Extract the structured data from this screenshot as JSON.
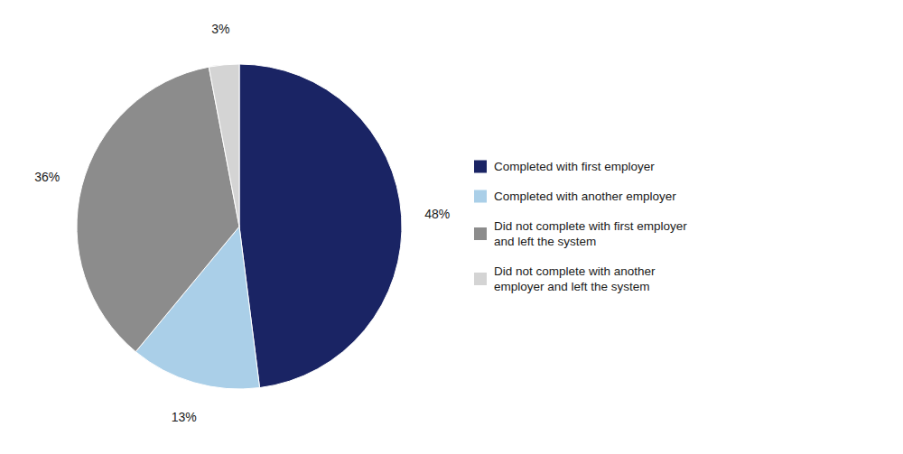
{
  "chart_data": {
    "type": "pie",
    "categories": [
      "Completed with first employer",
      "Completed with another employer",
      "Did not complete with first employer\nand left the system",
      "Did not complete with another\nemployer and left the system"
    ],
    "values": [
      48,
      13,
      36,
      3
    ],
    "value_labels": [
      "48%",
      "13%",
      "36%",
      "3%"
    ],
    "colors": [
      "#1a2464",
      "#aacfe8",
      "#8c8c8c",
      "#d4d4d4"
    ],
    "data_labels": true,
    "legend": "right"
  }
}
